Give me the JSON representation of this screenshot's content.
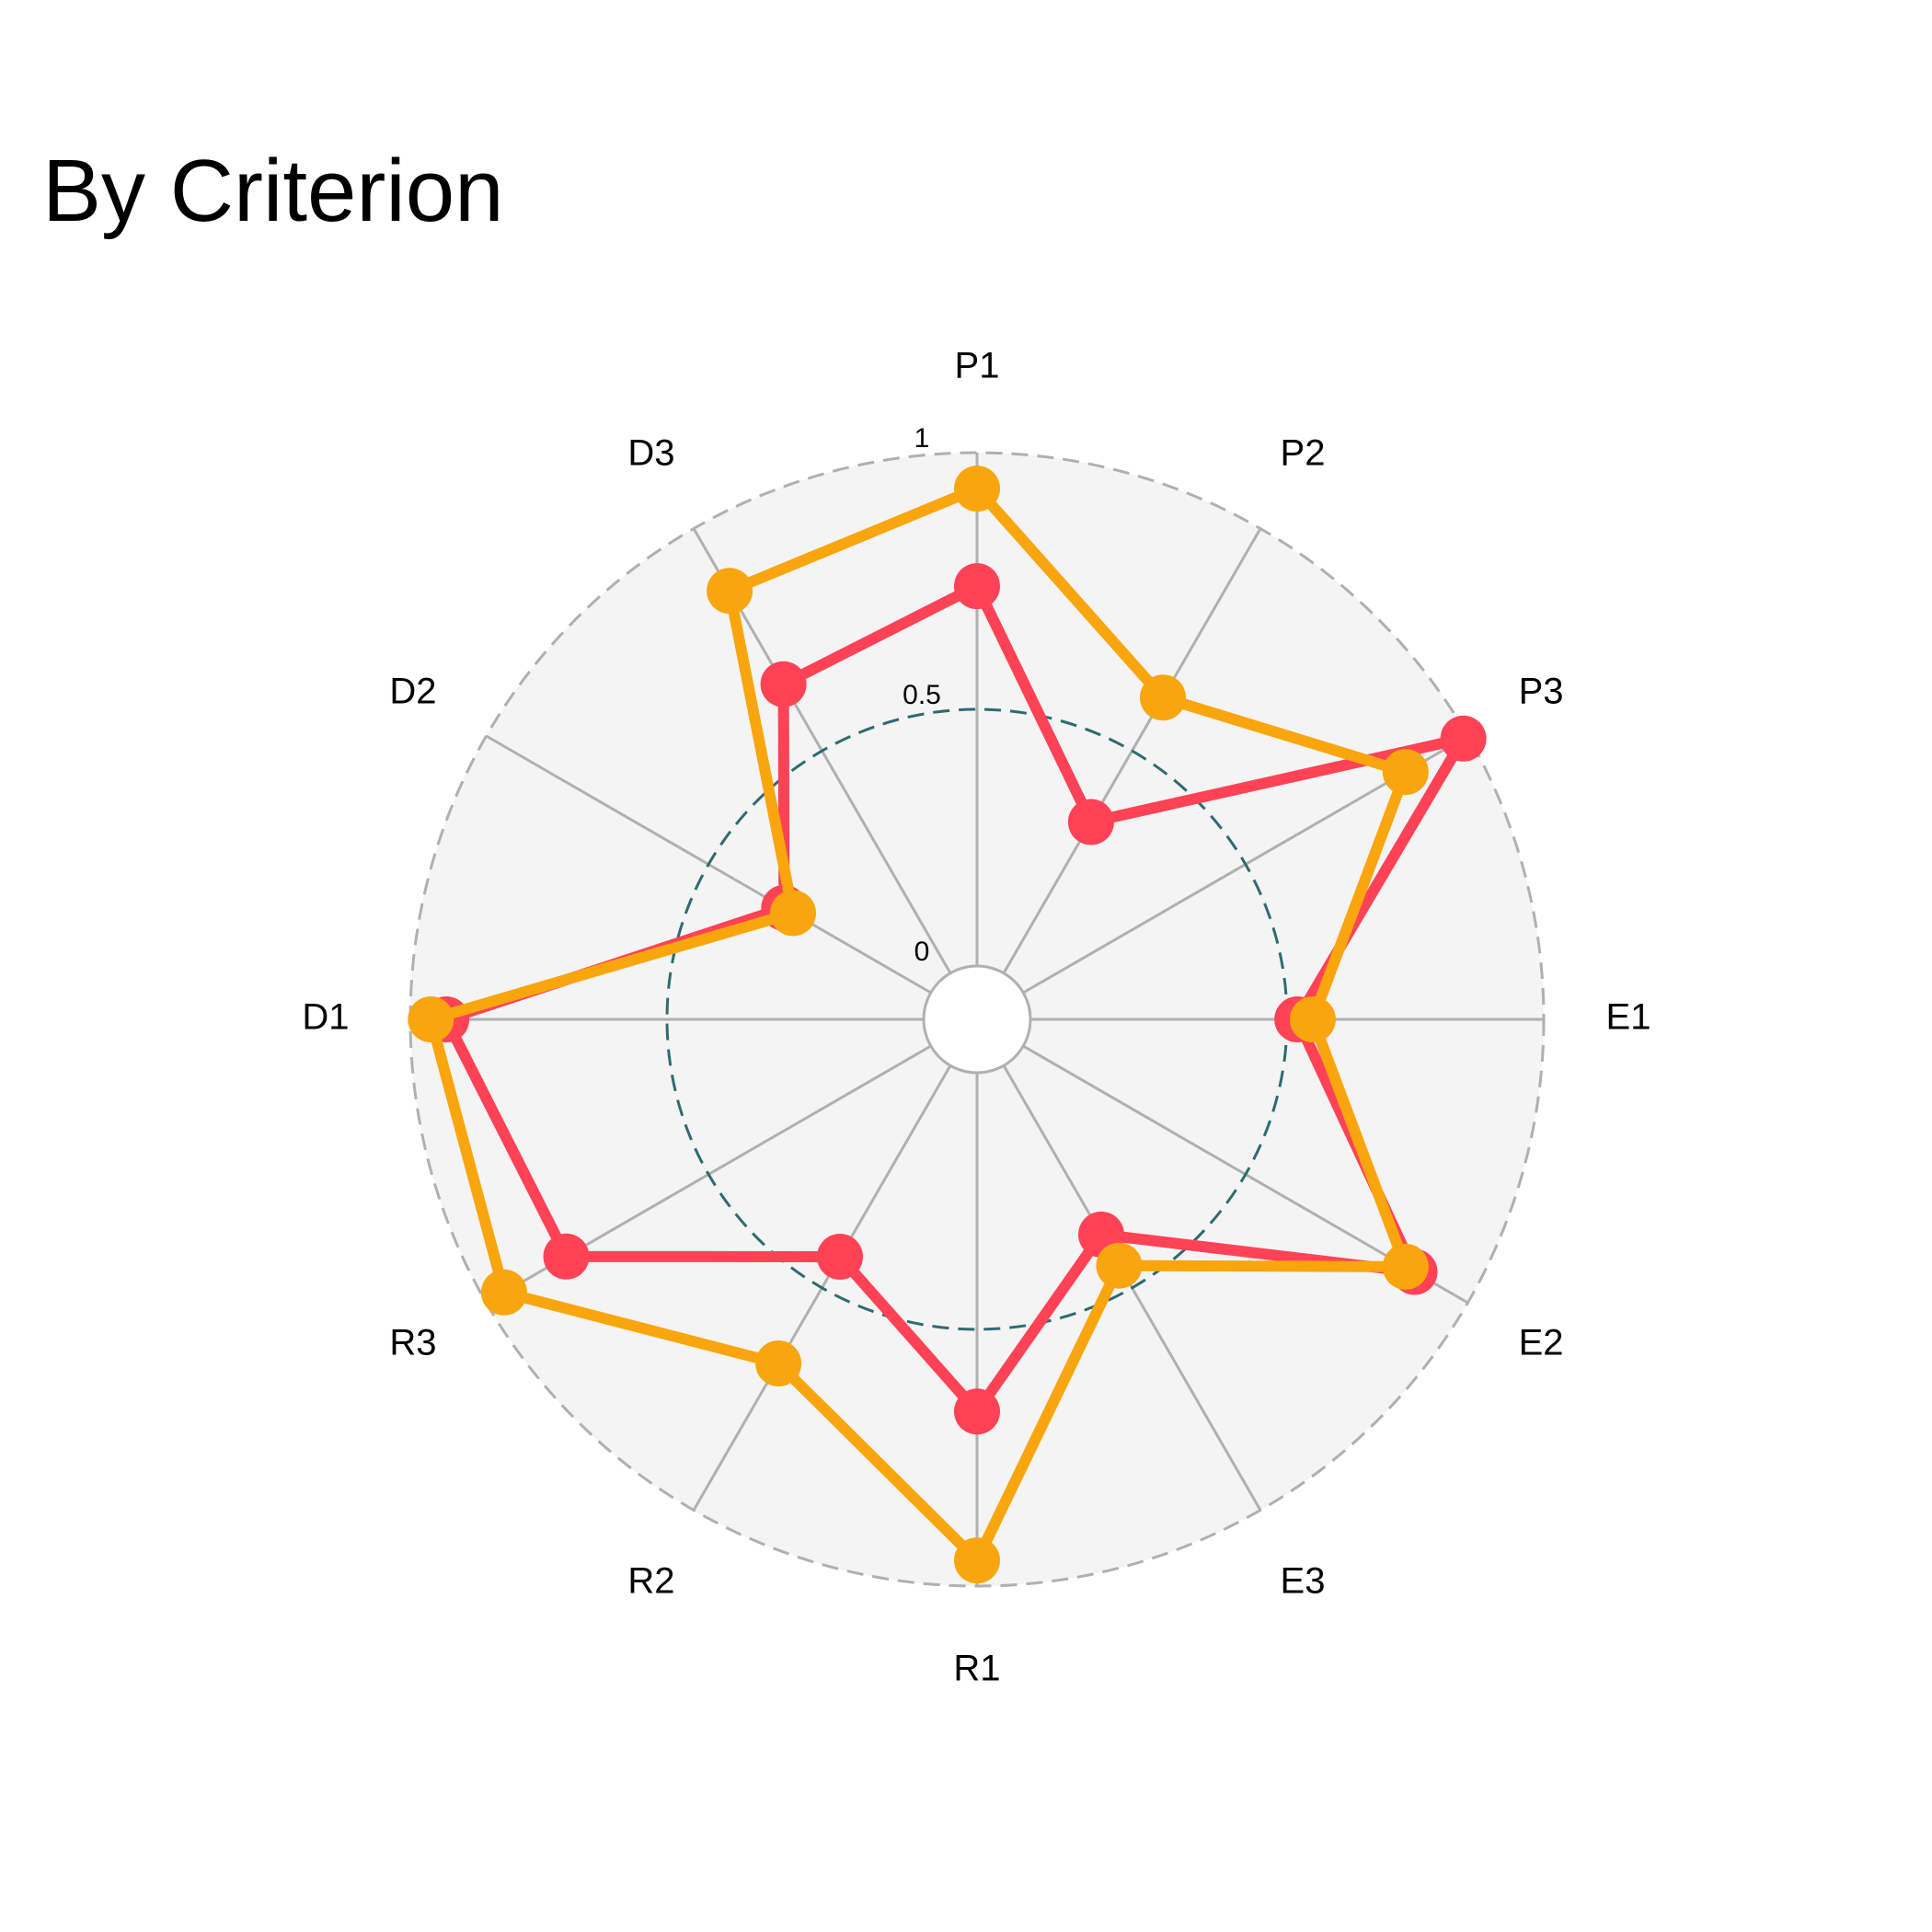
{
  "chart_data": {
    "type": "radar",
    "title": "By Criterion",
    "categories": [
      "P1",
      "P2",
      "P3",
      "E1",
      "E2",
      "E3",
      "R1",
      "R2",
      "R3",
      "D1",
      "D2",
      "D3"
    ],
    "radial_range": [
      0,
      1
    ],
    "radial_ticks": [
      {
        "value": 0,
        "label": "0"
      },
      {
        "value": 0.5,
        "label": "0.5"
      },
      {
        "value": 1,
        "label": "1"
      }
    ],
    "series": [
      {
        "color": "#ff4255",
        "values": [
          0.74,
          0.34,
          0.99,
          0.52,
          0.88,
          0.38,
          0.66,
          0.43,
          0.82,
          0.93,
          0.33,
          0.65
        ]
      },
      {
        "color": "#f9a50e",
        "values": [
          0.93,
          0.62,
          0.86,
          0.55,
          0.86,
          0.45,
          0.95,
          0.67,
          0.96,
          0.96,
          0.31,
          0.86
        ]
      }
    ],
    "grid": true,
    "background_color": "#f4f4f4",
    "gridline_color": "#b0b0b0",
    "midline_color": "#2e6b70"
  }
}
